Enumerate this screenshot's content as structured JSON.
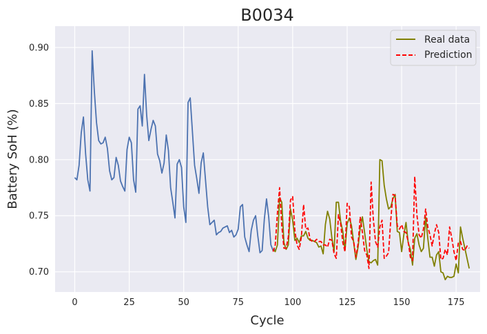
{
  "chart_data": {
    "type": "line",
    "title": "B0034",
    "xlabel": "Cycle",
    "ylabel": "Battery SoH (%)",
    "xlim": [
      -9,
      186
    ],
    "ylim": [
      0.682,
      0.919
    ],
    "xticks": [
      0,
      25,
      50,
      75,
      100,
      125,
      150,
      175
    ],
    "yticks": [
      0.7,
      0.75,
      0.8,
      0.85,
      0.9
    ],
    "ytick_labels": [
      "0.70",
      "0.75",
      "0.80",
      "0.85",
      "0.90"
    ],
    "grid": true,
    "legend_placement": "top-right",
    "colors": {
      "background": "#eaeaf2",
      "grid": "#ffffff",
      "history": "#4c72b0",
      "real": "#808000",
      "prediction": "#ff0000"
    },
    "series": [
      {
        "key": "history",
        "color": "#4c72b0",
        "dash": false,
        "x": [
          0,
          1,
          2,
          3,
          4,
          5,
          6,
          7,
          8,
          9,
          10,
          11,
          12,
          13,
          14,
          15,
          16,
          17,
          18,
          19,
          20,
          21,
          22,
          23,
          24,
          25,
          26,
          27,
          28,
          29,
          30,
          31,
          32,
          33,
          34,
          35,
          36,
          37,
          38,
          39,
          40,
          41,
          42,
          43,
          44,
          45,
          46,
          47,
          48,
          49,
          50,
          51,
          52,
          53,
          54,
          55,
          56,
          57,
          58,
          59,
          60,
          61,
          62,
          63,
          64,
          65,
          66,
          67,
          68,
          69,
          70,
          71,
          72,
          73,
          74,
          75,
          76,
          77,
          78,
          79,
          80,
          81,
          82,
          83,
          84,
          85,
          86,
          87,
          88,
          89,
          90,
          91,
          92
        ],
        "y": [
          0.784,
          0.782,
          0.795,
          0.824,
          0.838,
          0.805,
          0.782,
          0.772,
          0.897,
          0.861,
          0.833,
          0.817,
          0.814,
          0.815,
          0.82,
          0.81,
          0.79,
          0.782,
          0.784,
          0.802,
          0.795,
          0.781,
          0.776,
          0.772,
          0.809,
          0.82,
          0.815,
          0.782,
          0.771,
          0.845,
          0.848,
          0.83,
          0.876,
          0.84,
          0.817,
          0.827,
          0.835,
          0.83,
          0.805,
          0.799,
          0.788,
          0.797,
          0.822,
          0.808,
          0.775,
          0.762,
          0.748,
          0.796,
          0.8,
          0.793,
          0.758,
          0.744,
          0.851,
          0.855,
          0.825,
          0.795,
          0.783,
          0.77,
          0.797,
          0.806,
          0.782,
          0.758,
          0.742,
          0.744,
          0.746,
          0.733,
          0.735,
          0.736,
          0.739,
          0.74,
          0.741,
          0.735,
          0.737,
          0.731,
          0.733,
          0.738,
          0.758,
          0.76,
          0.731,
          0.724,
          0.718,
          0.737,
          0.746,
          0.75,
          0.732,
          0.717,
          0.719,
          0.747,
          0.765,
          0.749,
          0.724,
          0.719,
          0.72
        ]
      },
      {
        "key": "real",
        "name": "Real data",
        "color": "#808000",
        "dash": false,
        "x": [
          91,
          92,
          93,
          94,
          95,
          96,
          97,
          98,
          99,
          100,
          101,
          102,
          103,
          104,
          105,
          106,
          107,
          108,
          109,
          110,
          111,
          112,
          113,
          114,
          115,
          116,
          117,
          118,
          119,
          120,
          121,
          122,
          123,
          124,
          125,
          126,
          127,
          128,
          129,
          130,
          131,
          132,
          133,
          134,
          135,
          136,
          137,
          138,
          139,
          140,
          141,
          142,
          143,
          144,
          145,
          146,
          147,
          148,
          149,
          150,
          151,
          152,
          153,
          154,
          155,
          156,
          157,
          158,
          159,
          160,
          161,
          162,
          163,
          164,
          165,
          166,
          167,
          168,
          169,
          170,
          171,
          172,
          173,
          174,
          175,
          176,
          177,
          178,
          179,
          180,
          181
        ],
        "y": [
          0.72,
          0.718,
          0.724,
          0.766,
          0.762,
          0.726,
          0.72,
          0.724,
          0.756,
          0.746,
          0.728,
          0.73,
          0.726,
          0.732,
          0.732,
          0.736,
          0.73,
          0.728,
          0.728,
          0.727,
          0.726,
          0.722,
          0.723,
          0.716,
          0.742,
          0.754,
          0.747,
          0.73,
          0.718,
          0.762,
          0.762,
          0.745,
          0.736,
          0.719,
          0.743,
          0.748,
          0.741,
          0.726,
          0.711,
          0.722,
          0.739,
          0.749,
          0.735,
          0.72,
          0.709,
          0.708,
          0.71,
          0.711,
          0.706,
          0.8,
          0.799,
          0.777,
          0.765,
          0.756,
          0.758,
          0.765,
          0.769,
          0.736,
          0.735,
          0.718,
          0.733,
          0.744,
          0.726,
          0.72,
          0.706,
          0.73,
          0.734,
          0.724,
          0.718,
          0.721,
          0.749,
          0.73,
          0.713,
          0.713,
          0.705,
          0.715,
          0.718,
          0.7,
          0.699,
          0.693,
          0.696,
          0.695,
          0.695,
          0.696,
          0.707,
          0.699,
          0.74,
          0.73,
          0.721,
          0.712,
          0.703
        ]
      },
      {
        "key": "prediction",
        "name": "Prediction",
        "color": "#ff0000",
        "dash": true,
        "x": [
          91,
          92,
          93,
          94,
          95,
          96,
          97,
          98,
          99,
          100,
          101,
          102,
          103,
          104,
          105,
          106,
          107,
          108,
          109,
          110,
          111,
          112,
          113,
          114,
          115,
          116,
          117,
          118,
          119,
          120,
          121,
          122,
          123,
          124,
          125,
          126,
          127,
          128,
          129,
          130,
          131,
          132,
          133,
          134,
          135,
          136,
          137,
          138,
          139,
          140,
          141,
          142,
          143,
          144,
          145,
          146,
          147,
          148,
          149,
          150,
          151,
          152,
          153,
          154,
          155,
          156,
          157,
          158,
          159,
          160,
          161,
          162,
          163,
          164,
          165,
          166,
          167,
          168,
          169,
          170,
          171,
          172,
          173,
          174,
          175,
          176,
          177,
          178,
          179,
          180,
          181
        ],
        "y": [
          0.718,
          0.724,
          0.752,
          0.775,
          0.741,
          0.721,
          0.721,
          0.731,
          0.764,
          0.767,
          0.737,
          0.724,
          0.72,
          0.731,
          0.76,
          0.738,
          0.739,
          0.729,
          0.727,
          0.727,
          0.729,
          0.727,
          0.727,
          0.724,
          0.724,
          0.722,
          0.729,
          0.728,
          0.716,
          0.712,
          0.751,
          0.743,
          0.726,
          0.718,
          0.761,
          0.758,
          0.731,
          0.727,
          0.713,
          0.725,
          0.749,
          0.735,
          0.719,
          0.715,
          0.703,
          0.78,
          0.747,
          0.727,
          0.722,
          0.74,
          0.746,
          0.712,
          0.714,
          0.717,
          0.746,
          0.769,
          0.768,
          0.741,
          0.738,
          0.742,
          0.736,
          0.735,
          0.727,
          0.713,
          0.71,
          0.785,
          0.751,
          0.733,
          0.73,
          0.738,
          0.756,
          0.74,
          0.733,
          0.723,
          0.734,
          0.742,
          0.735,
          0.711,
          0.712,
          0.72,
          0.715,
          0.74,
          0.73,
          0.718,
          0.71,
          0.726,
          0.727,
          0.72,
          0.719,
          0.723,
          0.721
        ]
      }
    ]
  }
}
